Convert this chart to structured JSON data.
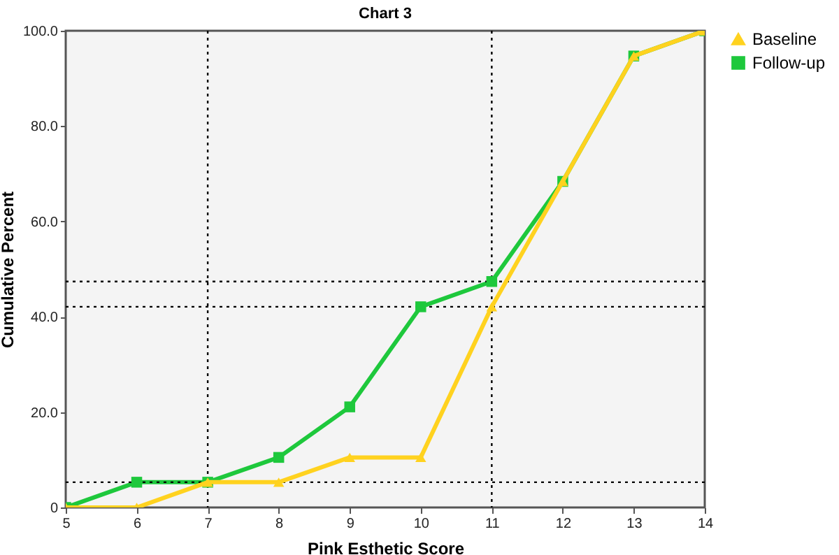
{
  "chart_data": {
    "type": "line",
    "title": "Chart 3",
    "xlabel": "Pink Esthetic Score",
    "ylabel": "Cumulative Percent",
    "x": [
      5,
      6,
      7,
      8,
      9,
      10,
      11,
      12,
      13,
      14
    ],
    "series": [
      {
        "name": "Baseline",
        "color": "#ffd21f",
        "marker": "triangle",
        "values": [
          0,
          0,
          5.3,
          5.3,
          10.5,
          10.5,
          42.1,
          68.4,
          94.7,
          100
        ]
      },
      {
        "name": "Follow-up",
        "color": "#1ec83c",
        "marker": "square",
        "values": [
          0,
          5.3,
          5.3,
          10.5,
          21.1,
          42.1,
          47.4,
          68.4,
          94.7,
          100
        ]
      }
    ],
    "xlim": [
      5,
      14
    ],
    "xticks": [
      5,
      6,
      7,
      8,
      9,
      10,
      11,
      12,
      13,
      14
    ],
    "ylim": [
      0,
      100
    ],
    "yticks": [
      0,
      {
        "value": 20,
        "label": "20.0"
      },
      {
        "value": 40,
        "label": "40.0"
      },
      {
        "value": 60,
        "label": "60.0"
      },
      {
        "value": 80,
        "label": "80.0"
      },
      {
        "value": 100,
        "label": "100.0"
      }
    ],
    "ref_lines": [
      {
        "axis": "x",
        "value": 7,
        "line_style": "dotted",
        "color": "#000000"
      },
      {
        "axis": "x",
        "value": 11,
        "line_style": "dotted",
        "color": "#000000"
      },
      {
        "axis": "y",
        "value": 5.3,
        "line_style": "dotted",
        "color": "#000000"
      },
      {
        "axis": "y",
        "value": 42.1,
        "line_style": "dotted",
        "color": "#000000"
      },
      {
        "axis": "y",
        "value": 47.4,
        "line_style": "dotted",
        "color": "#000000"
      }
    ],
    "grid": false,
    "legend": "right",
    "line_style": "solid"
  }
}
